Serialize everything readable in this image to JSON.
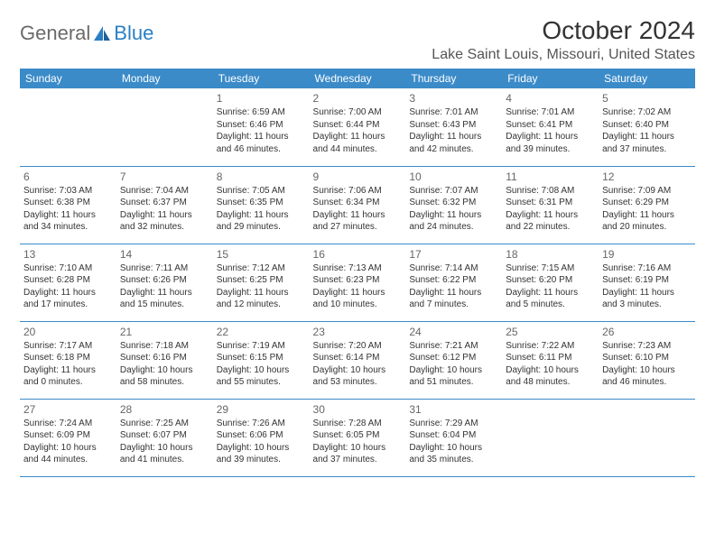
{
  "logo": {
    "part1": "General",
    "part2": "Blue"
  },
  "title": "October 2024",
  "location": "Lake Saint Louis, Missouri, United States",
  "colors": {
    "header_bg": "#3b8bc9",
    "header_text": "#ffffff",
    "border": "#3b8bc9",
    "text": "#333333"
  },
  "day_headers": [
    "Sunday",
    "Monday",
    "Tuesday",
    "Wednesday",
    "Thursday",
    "Friday",
    "Saturday"
  ],
  "weeks": [
    [
      null,
      null,
      {
        "n": "1",
        "sunrise": "6:59 AM",
        "sunset": "6:46 PM",
        "daylight": "11 hours and 46 minutes."
      },
      {
        "n": "2",
        "sunrise": "7:00 AM",
        "sunset": "6:44 PM",
        "daylight": "11 hours and 44 minutes."
      },
      {
        "n": "3",
        "sunrise": "7:01 AM",
        "sunset": "6:43 PM",
        "daylight": "11 hours and 42 minutes."
      },
      {
        "n": "4",
        "sunrise": "7:01 AM",
        "sunset": "6:41 PM",
        "daylight": "11 hours and 39 minutes."
      },
      {
        "n": "5",
        "sunrise": "7:02 AM",
        "sunset": "6:40 PM",
        "daylight": "11 hours and 37 minutes."
      }
    ],
    [
      {
        "n": "6",
        "sunrise": "7:03 AM",
        "sunset": "6:38 PM",
        "daylight": "11 hours and 34 minutes."
      },
      {
        "n": "7",
        "sunrise": "7:04 AM",
        "sunset": "6:37 PM",
        "daylight": "11 hours and 32 minutes."
      },
      {
        "n": "8",
        "sunrise": "7:05 AM",
        "sunset": "6:35 PM",
        "daylight": "11 hours and 29 minutes."
      },
      {
        "n": "9",
        "sunrise": "7:06 AM",
        "sunset": "6:34 PM",
        "daylight": "11 hours and 27 minutes."
      },
      {
        "n": "10",
        "sunrise": "7:07 AM",
        "sunset": "6:32 PM",
        "daylight": "11 hours and 24 minutes."
      },
      {
        "n": "11",
        "sunrise": "7:08 AM",
        "sunset": "6:31 PM",
        "daylight": "11 hours and 22 minutes."
      },
      {
        "n": "12",
        "sunrise": "7:09 AM",
        "sunset": "6:29 PM",
        "daylight": "11 hours and 20 minutes."
      }
    ],
    [
      {
        "n": "13",
        "sunrise": "7:10 AM",
        "sunset": "6:28 PM",
        "daylight": "11 hours and 17 minutes."
      },
      {
        "n": "14",
        "sunrise": "7:11 AM",
        "sunset": "6:26 PM",
        "daylight": "11 hours and 15 minutes."
      },
      {
        "n": "15",
        "sunrise": "7:12 AM",
        "sunset": "6:25 PM",
        "daylight": "11 hours and 12 minutes."
      },
      {
        "n": "16",
        "sunrise": "7:13 AM",
        "sunset": "6:23 PM",
        "daylight": "11 hours and 10 minutes."
      },
      {
        "n": "17",
        "sunrise": "7:14 AM",
        "sunset": "6:22 PM",
        "daylight": "11 hours and 7 minutes."
      },
      {
        "n": "18",
        "sunrise": "7:15 AM",
        "sunset": "6:20 PM",
        "daylight": "11 hours and 5 minutes."
      },
      {
        "n": "19",
        "sunrise": "7:16 AM",
        "sunset": "6:19 PM",
        "daylight": "11 hours and 3 minutes."
      }
    ],
    [
      {
        "n": "20",
        "sunrise": "7:17 AM",
        "sunset": "6:18 PM",
        "daylight": "11 hours and 0 minutes."
      },
      {
        "n": "21",
        "sunrise": "7:18 AM",
        "sunset": "6:16 PM",
        "daylight": "10 hours and 58 minutes."
      },
      {
        "n": "22",
        "sunrise": "7:19 AM",
        "sunset": "6:15 PM",
        "daylight": "10 hours and 55 minutes."
      },
      {
        "n": "23",
        "sunrise": "7:20 AM",
        "sunset": "6:14 PM",
        "daylight": "10 hours and 53 minutes."
      },
      {
        "n": "24",
        "sunrise": "7:21 AM",
        "sunset": "6:12 PM",
        "daylight": "10 hours and 51 minutes."
      },
      {
        "n": "25",
        "sunrise": "7:22 AM",
        "sunset": "6:11 PM",
        "daylight": "10 hours and 48 minutes."
      },
      {
        "n": "26",
        "sunrise": "7:23 AM",
        "sunset": "6:10 PM",
        "daylight": "10 hours and 46 minutes."
      }
    ],
    [
      {
        "n": "27",
        "sunrise": "7:24 AM",
        "sunset": "6:09 PM",
        "daylight": "10 hours and 44 minutes."
      },
      {
        "n": "28",
        "sunrise": "7:25 AM",
        "sunset": "6:07 PM",
        "daylight": "10 hours and 41 minutes."
      },
      {
        "n": "29",
        "sunrise": "7:26 AM",
        "sunset": "6:06 PM",
        "daylight": "10 hours and 39 minutes."
      },
      {
        "n": "30",
        "sunrise": "7:28 AM",
        "sunset": "6:05 PM",
        "daylight": "10 hours and 37 minutes."
      },
      {
        "n": "31",
        "sunrise": "7:29 AM",
        "sunset": "6:04 PM",
        "daylight": "10 hours and 35 minutes."
      },
      null,
      null
    ]
  ],
  "labels": {
    "sunrise": "Sunrise: ",
    "sunset": "Sunset: ",
    "daylight": "Daylight: "
  }
}
